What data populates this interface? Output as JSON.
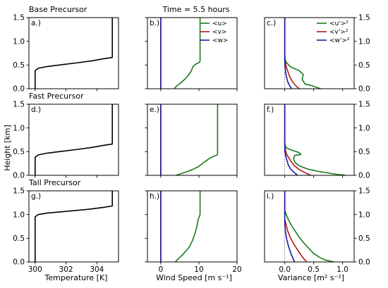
{
  "figure": {
    "title": "Time = 5.5 hours",
    "y_axis_label": "Height [km]",
    "row_titles": [
      "Base Precursor",
      "Fast Precursor",
      "Tall Precursor"
    ],
    "x_axis_labels": [
      "Temperature [K]",
      "Wind Speed [m s⁻¹]",
      "Variance [m² s⁻²]"
    ]
  },
  "colors": {
    "u": "#1b7a1b",
    "v": "#b01717",
    "w": "#1a1aa6",
    "temperature": "#000000"
  },
  "chart_data": [
    {
      "id": "a",
      "panel_label": "a.)",
      "type": "line",
      "xlim": [
        299.6,
        305.4
      ],
      "ylim": [
        0,
        1.5
      ],
      "xticks": [
        300,
        302,
        304
      ],
      "yticks": [
        0.0,
        0.5,
        1.0,
        1.5
      ],
      "series": [
        {
          "key": "temperature",
          "x": [
            300.0,
            300.0,
            300.0,
            300.2,
            300.8,
            301.8,
            302.8,
            303.7,
            304.4,
            305.0,
            305.0
          ],
          "y": [
            0.0,
            0.3,
            0.38,
            0.43,
            0.47,
            0.51,
            0.55,
            0.59,
            0.63,
            0.66,
            1.5
          ]
        }
      ]
    },
    {
      "id": "b",
      "panel_label": "b.)",
      "type": "line",
      "xlim": [
        -3.5,
        20
      ],
      "ylim": [
        0,
        1.5
      ],
      "xticks": [
        0,
        10,
        20
      ],
      "yticks": [
        0.0,
        0.5,
        1.0,
        1.5
      ],
      "legend": {
        "position": "top-right",
        "entries": [
          "<u>",
          "<v>",
          "<w>"
        ]
      },
      "series": [
        {
          "key": "u",
          "label": "<u>",
          "x": [
            3.5,
            4.2,
            5.2,
            6.3,
            7.2,
            7.9,
            8.3,
            8.6,
            9.2,
            10.0,
            10.3,
            10.3
          ],
          "y": [
            0.0,
            0.06,
            0.12,
            0.2,
            0.28,
            0.36,
            0.44,
            0.48,
            0.52,
            0.55,
            0.58,
            1.5
          ]
        },
        {
          "key": "v",
          "label": "<v>",
          "x": [
            0,
            0
          ],
          "y": [
            0,
            1.5
          ]
        },
        {
          "key": "w",
          "label": "<w>",
          "x": [
            0,
            0
          ],
          "y": [
            0,
            1.5
          ]
        }
      ]
    },
    {
      "id": "c",
      "panel_label": "c.)",
      "type": "line",
      "xlim": [
        -0.35,
        1.2
      ],
      "ylim": [
        0,
        1.5
      ],
      "xticks": [
        0.0,
        0.5,
        1.0
      ],
      "yticks": [
        0.0,
        0.5,
        1.0,
        1.5
      ],
      "reference_x": 0,
      "legend": {
        "position": "top-right",
        "entries": [
          "<u'>²",
          "<v'>²",
          "<w'>²"
        ]
      },
      "series": [
        {
          "key": "u",
          "label": "<u'>²",
          "x": [
            0.62,
            0.55,
            0.45,
            0.35,
            0.3,
            0.32,
            0.25,
            0.18,
            0.12,
            0.08,
            0.07,
            0.03,
            0.01,
            0.0,
            0.0
          ],
          "y": [
            0.0,
            0.03,
            0.07,
            0.1,
            0.2,
            0.3,
            0.38,
            0.42,
            0.45,
            0.48,
            0.5,
            0.55,
            0.6,
            0.7,
            1.5
          ]
        },
        {
          "key": "v",
          "label": "<v'>²",
          "x": [
            0.25,
            0.2,
            0.13,
            0.07,
            0.03,
            0.01,
            0.0,
            0.0
          ],
          "y": [
            0.0,
            0.05,
            0.15,
            0.3,
            0.45,
            0.55,
            0.6,
            1.5
          ]
        },
        {
          "key": "w",
          "label": "<w'>²",
          "x": [
            0.12,
            0.09,
            0.05,
            0.02,
            0.005,
            0.0,
            0.0
          ],
          "y": [
            0.0,
            0.05,
            0.15,
            0.3,
            0.45,
            0.55,
            1.5
          ]
        }
      ]
    },
    {
      "id": "d",
      "panel_label": "d.)",
      "type": "line",
      "xlim": [
        299.6,
        305.4
      ],
      "ylim": [
        0,
        1.5
      ],
      "xticks": [
        300,
        302,
        304
      ],
      "yticks": [
        0.0,
        0.5,
        1.0,
        1.5
      ],
      "series": [
        {
          "key": "temperature",
          "x": [
            300.0,
            300.0,
            300.0,
            300.2,
            300.8,
            301.8,
            302.8,
            303.7,
            304.4,
            305.0,
            305.0
          ],
          "y": [
            0.0,
            0.3,
            0.38,
            0.43,
            0.47,
            0.51,
            0.55,
            0.59,
            0.63,
            0.66,
            1.5
          ]
        }
      ]
    },
    {
      "id": "e",
      "panel_label": "e.)",
      "type": "line",
      "xlim": [
        -3.5,
        20
      ],
      "ylim": [
        0,
        1.5
      ],
      "xticks": [
        0,
        10,
        20
      ],
      "yticks": [
        0.0,
        0.5,
        1.0,
        1.5
      ],
      "series": [
        {
          "key": "u",
          "label": "<u>",
          "x": [
            4.0,
            5.5,
            7.0,
            8.5,
            9.8,
            10.8,
            11.8,
            12.8,
            13.8,
            14.8,
            14.9,
            14.9
          ],
          "y": [
            0.0,
            0.04,
            0.08,
            0.13,
            0.18,
            0.24,
            0.3,
            0.36,
            0.4,
            0.43,
            0.46,
            1.5
          ]
        },
        {
          "key": "v",
          "label": "<v>",
          "x": [
            0,
            0
          ],
          "y": [
            0,
            1.5
          ]
        },
        {
          "key": "w",
          "label": "<w>",
          "x": [
            0,
            0
          ],
          "y": [
            0,
            1.5
          ]
        }
      ]
    },
    {
      "id": "f",
      "panel_label": "f.)",
      "type": "line",
      "xlim": [
        -0.35,
        1.2
      ],
      "ylim": [
        0,
        1.5
      ],
      "xticks": [
        0.0,
        0.5,
        1.0
      ],
      "yticks": [
        0.0,
        0.5,
        1.0,
        1.5
      ],
      "reference_x": 0,
      "series": [
        {
          "key": "u",
          "label": "<u'>²",
          "x": [
            1.05,
            0.85,
            0.6,
            0.4,
            0.25,
            0.18,
            0.15,
            0.17,
            0.28,
            0.25,
            0.15,
            0.08,
            0.03,
            0.01,
            0.0,
            0.0
          ],
          "y": [
            0.0,
            0.03,
            0.08,
            0.13,
            0.2,
            0.27,
            0.35,
            0.42,
            0.44,
            0.48,
            0.52,
            0.55,
            0.58,
            0.62,
            0.7,
            1.5
          ]
        },
        {
          "key": "v",
          "label": "<v'>²",
          "x": [
            0.45,
            0.36,
            0.25,
            0.15,
            0.08,
            0.03,
            0.01,
            0.0,
            0.0
          ],
          "y": [
            0.0,
            0.05,
            0.12,
            0.22,
            0.35,
            0.45,
            0.55,
            0.6,
            1.5
          ]
        },
        {
          "key": "w",
          "label": "<w'>²",
          "x": [
            0.22,
            0.17,
            0.11,
            0.06,
            0.03,
            0.01,
            0.0,
            0.0
          ],
          "y": [
            0.0,
            0.05,
            0.12,
            0.22,
            0.35,
            0.45,
            0.55,
            1.5
          ]
        }
      ]
    },
    {
      "id": "g",
      "panel_label": "g.)",
      "type": "line",
      "xlim": [
        299.6,
        305.4
      ],
      "ylim": [
        0,
        1.5
      ],
      "xticks": [
        300,
        302,
        304
      ],
      "yticks": [
        0.0,
        0.5,
        1.0,
        1.5
      ],
      "series": [
        {
          "key": "temperature",
          "x": [
            300.0,
            300.0,
            300.0,
            300.2,
            300.8,
            301.8,
            302.8,
            303.7,
            304.4,
            305.0,
            305.0
          ],
          "y": [
            0.0,
            0.85,
            0.95,
            1.0,
            1.03,
            1.06,
            1.09,
            1.12,
            1.15,
            1.18,
            1.5
          ]
        }
      ]
    },
    {
      "id": "h",
      "panel_label": "h.)",
      "type": "line",
      "xlim": [
        -3.5,
        20
      ],
      "ylim": [
        0,
        1.5
      ],
      "xticks": [
        0,
        10,
        20
      ],
      "yticks": [
        0.0,
        0.5,
        1.0,
        1.5
      ],
      "series": [
        {
          "key": "u",
          "label": "<u>",
          "x": [
            3.8,
            4.5,
            5.5,
            6.5,
            7.5,
            8.3,
            8.9,
            9.3,
            9.6,
            9.8,
            10.1,
            10.3,
            10.3
          ],
          "y": [
            0.0,
            0.06,
            0.13,
            0.22,
            0.32,
            0.45,
            0.58,
            0.7,
            0.8,
            0.9,
            0.95,
            1.0,
            1.5
          ]
        },
        {
          "key": "v",
          "label": "<v>",
          "x": [
            0,
            0
          ],
          "y": [
            0,
            1.5
          ]
        },
        {
          "key": "w",
          "label": "<w>",
          "x": [
            0,
            0
          ],
          "y": [
            0,
            1.5
          ]
        }
      ]
    },
    {
      "id": "i",
      "panel_label": "i.)",
      "type": "line",
      "xlim": [
        -0.35,
        1.2
      ],
      "ylim": [
        0,
        1.5
      ],
      "xticks": [
        0.0,
        0.5,
        1.0
      ],
      "yticks": [
        0.0,
        0.5,
        1.0,
        1.5
      ],
      "reference_x": 0,
      "series": [
        {
          "key": "u",
          "label": "<u'>²",
          "x": [
            0.85,
            0.7,
            0.6,
            0.5,
            0.42,
            0.33,
            0.25,
            0.18,
            0.12,
            0.08,
            0.04,
            0.01,
            0.0,
            0.0
          ],
          "y": [
            0.0,
            0.04,
            0.1,
            0.18,
            0.28,
            0.4,
            0.52,
            0.65,
            0.76,
            0.85,
            0.95,
            1.05,
            1.1,
            1.5
          ]
        },
        {
          "key": "v",
          "label": "<v'>²",
          "x": [
            0.38,
            0.32,
            0.25,
            0.17,
            0.1,
            0.05,
            0.02,
            0.0,
            0.0
          ],
          "y": [
            0.0,
            0.08,
            0.2,
            0.35,
            0.5,
            0.65,
            0.8,
            0.9,
            1.5
          ]
        },
        {
          "key": "w",
          "label": "<w'>²",
          "x": [
            0.17,
            0.14,
            0.1,
            0.06,
            0.03,
            0.01,
            0.0,
            0.0
          ],
          "y": [
            0.0,
            0.08,
            0.2,
            0.35,
            0.5,
            0.65,
            0.8,
            1.5
          ]
        }
      ]
    }
  ]
}
